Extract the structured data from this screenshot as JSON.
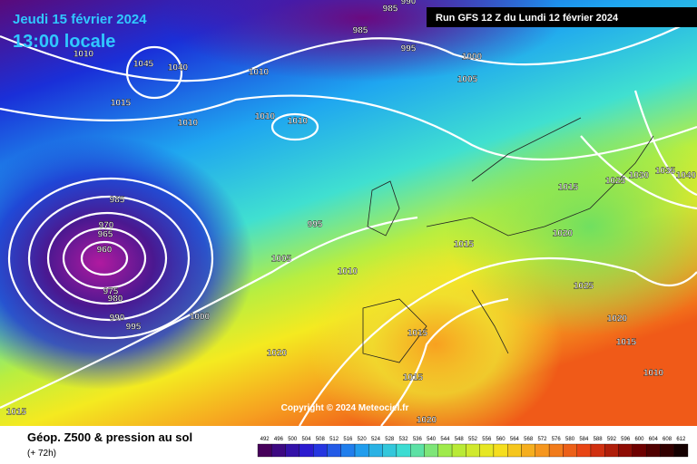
{
  "header": {
    "date": "Jeudi 15 février 2024",
    "time": "13:00 locale",
    "run": "Run GFS 12 Z du Lundi 12 février 2024"
  },
  "copyright": "Copyright © 2024 Meteociel.fr",
  "footer": {
    "title": "Géop. Z500 & pression au sol",
    "step": "(+ 72h)"
  },
  "scale": {
    "labels": [
      492,
      496,
      500,
      504,
      508,
      512,
      516,
      520,
      524,
      528,
      532,
      536,
      540,
      544,
      548,
      552,
      556,
      560,
      564,
      568,
      572,
      576,
      580,
      584,
      588,
      592,
      596,
      600,
      604,
      608,
      612
    ]
  },
  "isobars": {
    "labels": [
      "985",
      "990",
      "985",
      "995",
      "1000",
      "1005",
      "1010",
      "1045",
      "1040",
      "1010",
      "1015",
      "1010",
      "1010",
      "1010",
      "985",
      "970",
      "965",
      "960",
      "975",
      "980",
      "990",
      "995",
      "1000",
      "1005",
      "995",
      "1010",
      "1015",
      "1020",
      "1015",
      "1025",
      "1030",
      "1035",
      "1040",
      "1025",
      "1020",
      "1015",
      "1015",
      "1010",
      "1015",
      "1020",
      "1020",
      "1015"
    ]
  }
}
